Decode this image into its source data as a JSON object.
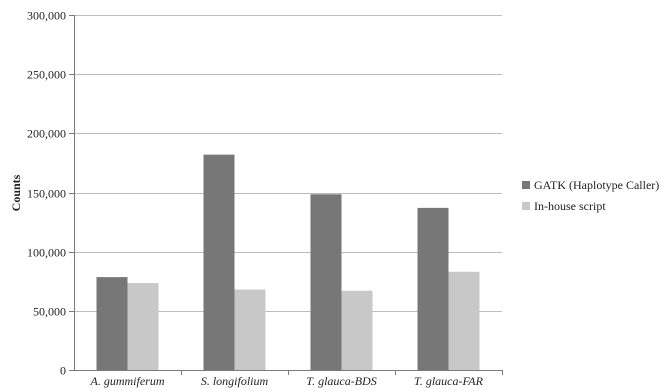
{
  "chart_data": {
    "type": "bar",
    "categories": [
      "A. gummiferum",
      "S. longifolium",
      "T. glauca-BDS",
      "T. glauca-FAR"
    ],
    "series": [
      {
        "name": "GATK (Haplotype Caller)",
        "values": [
          78500,
          182000,
          148500,
          137000
        ],
        "color": "#777777"
      },
      {
        "name": "In-house script",
        "values": [
          73500,
          68000,
          67000,
          83000
        ],
        "color": "#c8c8c8"
      }
    ],
    "xlabel": "",
    "ylabel": "Counts",
    "ylim": [
      0,
      300000
    ],
    "yticks": [
      0,
      50000,
      100000,
      150000,
      200000,
      250000,
      300000
    ],
    "ytick_labels": [
      "0",
      "50,000",
      "100,000",
      "150,000",
      "200,000",
      "250,000",
      "300,000"
    ],
    "grid": true,
    "legend_position": "right"
  }
}
